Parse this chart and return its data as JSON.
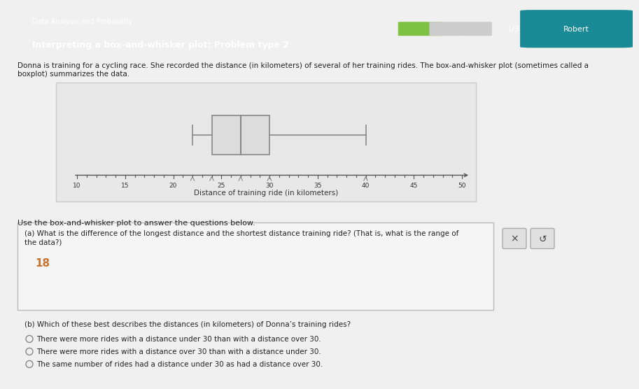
{
  "title_line1": "Data Analysis and Probability",
  "title_line2": "Interpreting a box-and-whisker plot: Problem type 2",
  "progress_text": "1/3",
  "user_name": "Robert",
  "intro_text": "Donna is training for a cycling race. She recorded the distance (in kilometers) of several of her training rides. The box-and-whisker plot (sometimes called a\nboxplot) summarizes the data.",
  "boxplot": {
    "minimum": 22,
    "q1": 24,
    "median": 27,
    "q3": 30,
    "maximum": 40
  },
  "xaxis_min": 10,
  "xaxis_max": 50,
  "xlabel": "Distance of training ride (in kilometers)",
  "question_a_text": "(a) What is the difference of the longest distance and the shortest distance training ride? (That is, what is the range of\nthe data?)",
  "answer_a": "18",
  "question_b_text": "(b) Which of these best describes the distances (in kilometers) of Donna’s training rides?",
  "options": [
    "There were more rides with a distance under 30 than with a distance over 30.",
    "There were more rides with a distance over 30 than with a distance under 30.",
    "The same number of rides had a distance under 30 as had a distance over 30."
  ],
  "header_bg": "#2ab3c0",
  "header_text_color": "#ffffff",
  "page_bg": "#f0f0f0",
  "box_fill": "#e8e8e8",
  "box_edge": "#888888",
  "whisker_color": "#888888",
  "plot_bg": "#e8e8e8",
  "plot_border": "#cccccc",
  "answer_color": "#c87533",
  "question_section_bg": "#f5f5f5",
  "question_section_border": "#cccccc",
  "espanol_bg": "#f5f5f5",
  "icon_color": "#e8a000"
}
